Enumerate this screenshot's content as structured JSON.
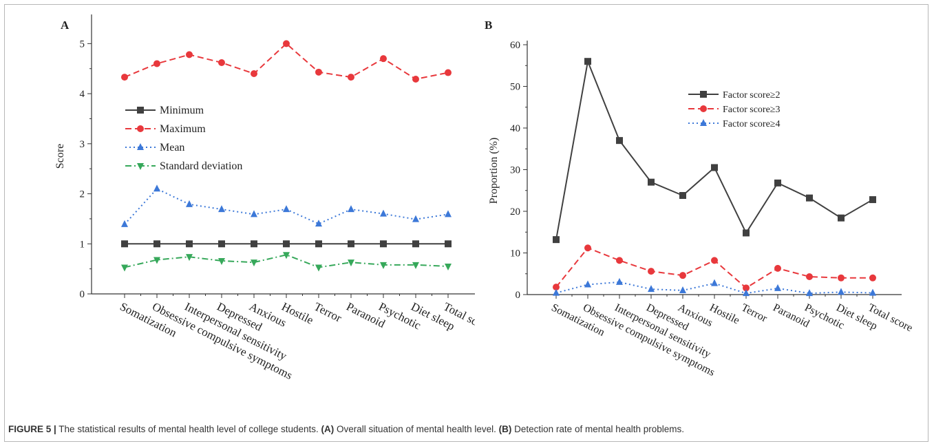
{
  "colors": {
    "black": "#404040",
    "red": "#e8383c",
    "blue": "#3c78d8",
    "green": "#36a85a"
  },
  "caption": {
    "figure_label": "FIGURE 5 |",
    "text_1": " The statistical results of mental health level of college students. ",
    "panel_a_label": "(A)",
    "text_2": " Overall situation of mental health level. ",
    "panel_b_label": "(B)",
    "text_3": " Detection rate of mental health problems."
  },
  "chart_data": [
    {
      "panel": "A",
      "type": "line",
      "ylabel": "Score",
      "ylim": [
        0,
        5.5
      ],
      "yticks": [
        0,
        1,
        2,
        3,
        4,
        5
      ],
      "legend_position": "center-left",
      "categories": [
        "Somatization",
        "Obsessive compulsive symptoms",
        "Interpersonal sensitivity",
        "Depressed",
        "Anxious",
        "Hostile",
        "Terror",
        "Paranoid",
        "Psychotic",
        "Diet sleep",
        "Total score"
      ],
      "series": [
        {
          "name": "Minimum",
          "marker": "square",
          "dash": "solid",
          "color_key": "black",
          "values": [
            1,
            1,
            1,
            1,
            1,
            1,
            1,
            1,
            1,
            1,
            1
          ]
        },
        {
          "name": "Maximum",
          "marker": "circle",
          "dash": "dash",
          "color_key": "red",
          "values": [
            4.33,
            4.6,
            4.78,
            4.62,
            4.4,
            5.0,
            4.43,
            4.33,
            4.7,
            4.29,
            4.42
          ]
        },
        {
          "name": "Mean",
          "marker": "triangle-up",
          "dash": "dot",
          "color_key": "blue",
          "values": [
            1.39,
            2.1,
            1.79,
            1.69,
            1.59,
            1.69,
            1.4,
            1.69,
            1.6,
            1.49,
            1.59
          ]
        },
        {
          "name": "Standard deviation",
          "marker": "triangle-down",
          "dash": "dashdot",
          "color_key": "green",
          "values": [
            0.53,
            0.68,
            0.74,
            0.66,
            0.63,
            0.78,
            0.53,
            0.63,
            0.58,
            0.58,
            0.55
          ]
        }
      ]
    },
    {
      "panel": "B",
      "type": "line",
      "ylabel": "Proportion (%)",
      "ylim": [
        0,
        60
      ],
      "yticks": [
        0,
        10,
        20,
        30,
        40,
        50,
        60
      ],
      "legend_position": "top-right",
      "categories": [
        "Somatization",
        "Obsessive compulsive symptoms",
        "Interpersonal sensitivity",
        "Depressed",
        "Anxious",
        "Hostile",
        "Terror",
        "Paranoid",
        "Psychotic",
        "Diet sleep",
        "Total score"
      ],
      "series": [
        {
          "name": "Factor score≥2",
          "marker": "square",
          "dash": "solid",
          "color_key": "black",
          "values": [
            13.2,
            56.0,
            37.0,
            27.0,
            23.8,
            30.5,
            14.8,
            26.8,
            23.2,
            18.4,
            22.8
          ]
        },
        {
          "name": "Factor score≥3",
          "marker": "circle",
          "dash": "dash",
          "color_key": "red",
          "values": [
            1.8,
            11.2,
            8.2,
            5.6,
            4.6,
            8.2,
            1.6,
            6.3,
            4.3,
            4.0,
            4.0
          ]
        },
        {
          "name": "Factor score≥4",
          "marker": "triangle-up",
          "dash": "dot",
          "color_key": "blue",
          "values": [
            0.4,
            2.4,
            3.0,
            1.3,
            1.0,
            2.7,
            0.3,
            1.5,
            0.3,
            0.6,
            0.4
          ]
        }
      ]
    }
  ]
}
